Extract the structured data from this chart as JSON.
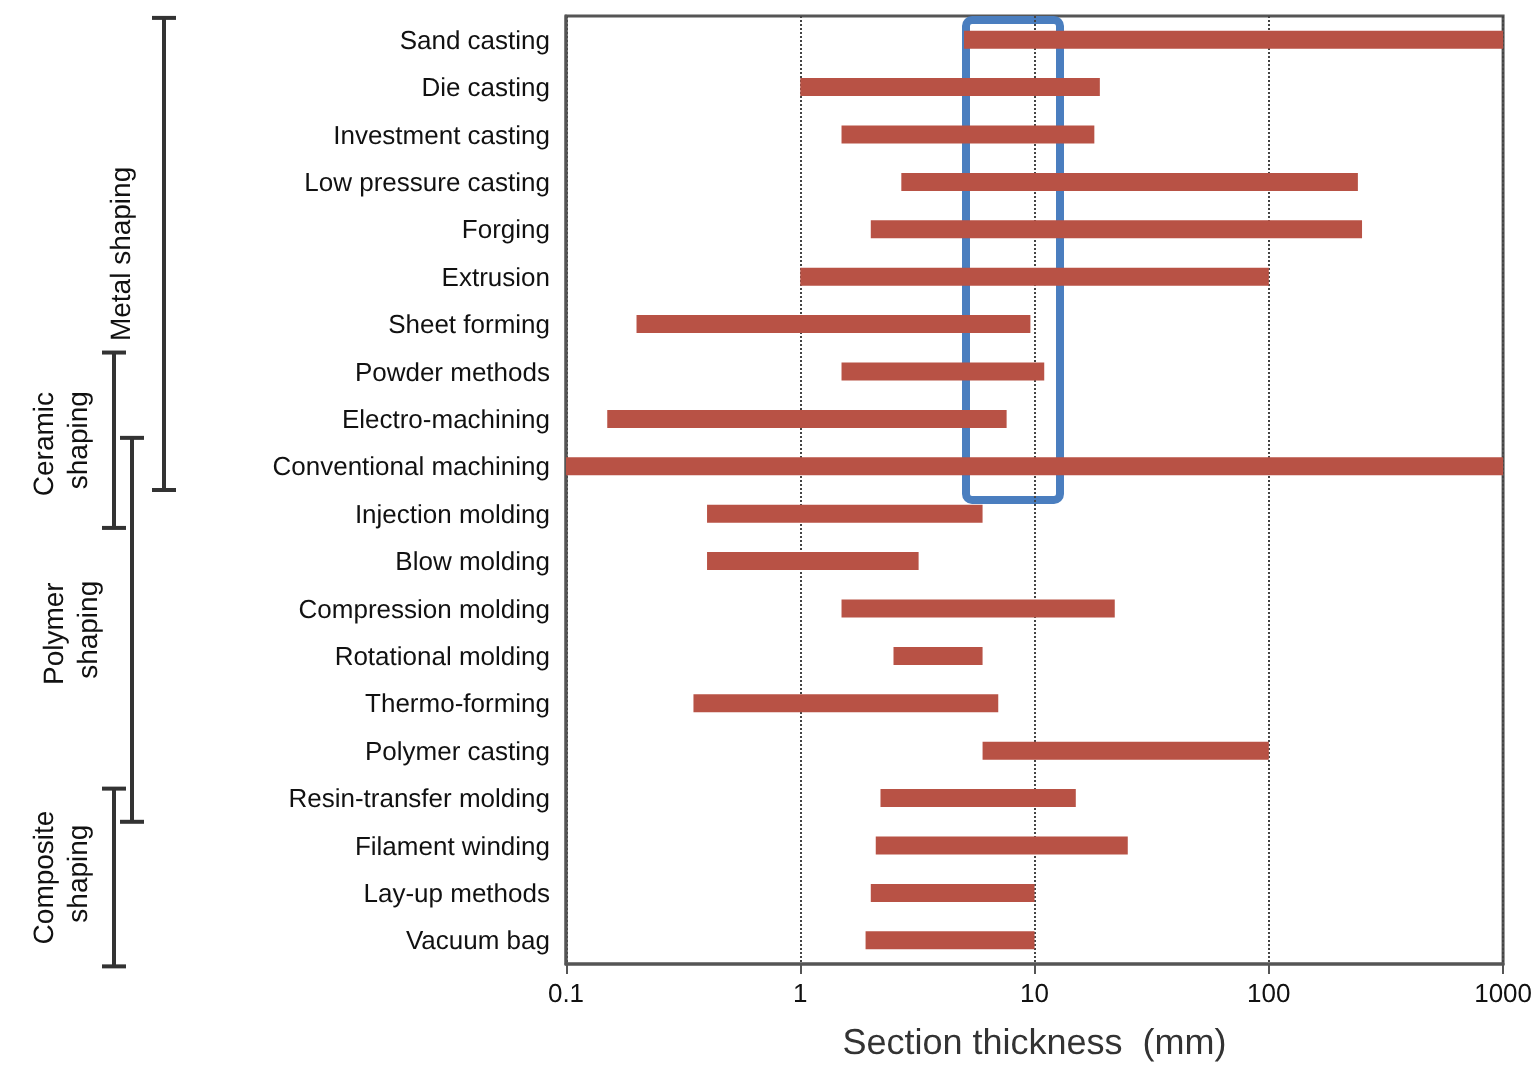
{
  "chart_data": {
    "type": "bar",
    "orientation": "horizontal",
    "xlabel": "Section thickness  (mm)",
    "categories": [
      "Sand casting",
      "Die casting",
      "Investment casting",
      "Low pressure casting",
      "Forging",
      "Extrusion",
      "Sheet forming",
      "Powder methods",
      "Electro-machining",
      "Conventional machining",
      "Injection molding",
      "Blow molding",
      "Compression molding",
      "Rotational molding",
      "Thermo-forming",
      "Polymer casting",
      "Resin-transfer molding",
      "Filament winding",
      "Lay-up methods",
      "Vacuum bag"
    ],
    "base": [
      5,
      1,
      1.5,
      2.7,
      2,
      1,
      0.2,
      1.5,
      0.15,
      0.1,
      0.4,
      0.4,
      1.5,
      2.5,
      0.35,
      6,
      2.2,
      2.1,
      2,
      1.9
    ],
    "values": [
      995,
      18,
      16.5,
      237.3,
      248,
      99,
      9.4,
      9.5,
      7.45,
      999.9,
      5.6,
      2.8,
      20.5,
      3.5,
      6.65,
      94,
      12.8,
      22.9,
      8,
      8.1
    ],
    "color": "#b85245",
    "log": "x",
    "xlim": [
      0.1,
      1000
    ],
    "xticks": [
      0.1,
      1,
      10,
      100,
      1000
    ],
    "grid": "x",
    "annotations": [
      "Metal shaping",
      "Ceramic shaping",
      "Polymer shaping",
      "Composite shaping"
    ]
  }
}
